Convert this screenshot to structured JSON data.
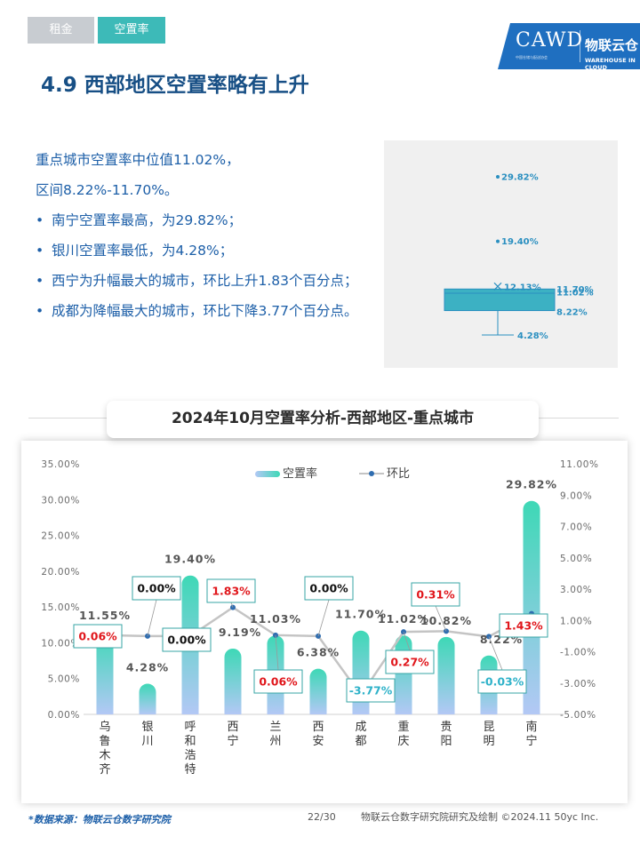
{
  "tabs": [
    {
      "label": "租金",
      "active": false
    },
    {
      "label": "空置率",
      "active": true
    }
  ],
  "logo": {
    "name": "CAWD",
    "subtitle": "中国仓储与配送协会",
    "brand": "物联云仓",
    "brand_en": "WAREHOUSE IN CLOUD"
  },
  "page_title": "4.9 西部地区空置率略有上升",
  "summary": {
    "lines": [
      "重点城市空置率中位值11.02%，",
      "区间8.22%-11.70%。"
    ],
    "bullets": [
      "南宁空置率最高，为29.82%；",
      "银川空置率最低，为4.28%；",
      "西宁为升幅最大的城市，环比上升1.83个百分点；",
      "成都为降幅最大的城市，环比下降3.77个百分点。"
    ]
  },
  "boxplot": {
    "outliers": [
      {
        "value": 29.82,
        "label": "29.82%"
      },
      {
        "value": 19.4,
        "label": "19.40%"
      }
    ],
    "mean": {
      "value": 12.13,
      "label": "12.13%"
    },
    "q3": {
      "value": 11.7,
      "label": "11.70%"
    },
    "median": {
      "value": 11.02,
      "label": "11.02%"
    },
    "q1": {
      "value": 8.22,
      "label": "8.22%"
    },
    "min": {
      "value": 4.28,
      "label": "4.28%"
    }
  },
  "chart_data": {
    "type": "bar",
    "title": "2024年10月空置率分析-西部地区-重点城市",
    "categories": [
      "乌鲁木齐",
      "银川",
      "呼和浩特",
      "西宁",
      "兰州",
      "西安",
      "成都",
      "重庆",
      "贵阳",
      "昆明",
      "南宁"
    ],
    "series": [
      {
        "name": "空置率",
        "type": "bar",
        "axis": "left",
        "values": [
          11.55,
          4.28,
          19.4,
          9.19,
          11.03,
          6.38,
          11.7,
          11.02,
          10.82,
          8.22,
          29.82
        ],
        "labels": [
          "11.55%",
          "4.28%",
          "19.40%",
          "9.19%",
          "11.03%",
          "6.38%",
          "11.70%",
          "11.02%",
          "10.82%",
          "8.22%",
          "29.82%"
        ]
      },
      {
        "name": "环比",
        "type": "line",
        "axis": "right",
        "values": [
          0.06,
          0.0,
          0.0,
          1.83,
          0.06,
          0.0,
          -3.77,
          0.27,
          0.31,
          -0.03,
          1.43
        ],
        "labels": [
          "0.06%",
          "0.00%",
          "0.00%",
          "1.83%",
          "0.06%",
          "0.00%",
          "-3.77%",
          "0.27%",
          "0.31%",
          "-0.03%",
          "1.43%"
        ]
      }
    ],
    "left_axis": {
      "ylim": [
        0,
        35
      ],
      "ticks": [
        "0.00%",
        "5.00%",
        "10.00%",
        "15.00%",
        "20.00%",
        "25.00%",
        "30.00%",
        "35.00%"
      ]
    },
    "right_axis": {
      "ylim": [
        -5,
        11
      ],
      "ticks": [
        "-5.00%",
        "-3.00%",
        "-1.00%",
        "1.00%",
        "3.00%",
        "5.00%",
        "7.00%",
        "9.00%",
        "11.00%"
      ]
    },
    "legend": {
      "position": "top-center"
    },
    "grid": false,
    "colors": {
      "bar_top": "#3ed8b6",
      "bar_bottom": "#b3c8f5",
      "line": "#c4c4c4",
      "marker": "#2f6db0",
      "positive_label": "#e0161b",
      "negative_label": "#2fb2c9",
      "label_border": "#37a6a6"
    }
  },
  "footer": {
    "source": "*数据来源：物联云仓数字研究院",
    "page": "22/30",
    "copyright": "物联云仓数字研究院研究及绘制   ©2024.11 50yc Inc."
  }
}
